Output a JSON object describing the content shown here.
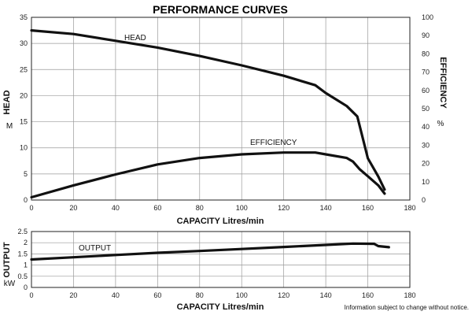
{
  "title": "PERFORMANCE CURVES",
  "footnote": "Information subject to change without notice.",
  "chart_data": [
    {
      "type": "line",
      "xlabel": "CAPACITY Litres/min",
      "xlim": [
        0,
        180
      ],
      "x_ticks": [
        "0",
        "20",
        "40",
        "60",
        "80",
        "100",
        "120",
        "140",
        "160",
        "180"
      ],
      "ylabel": "HEAD",
      "ylabel_unit": "M",
      "ylim": [
        0,
        35
      ],
      "y_ticks": [
        "0",
        "5",
        "10",
        "15",
        "20",
        "25",
        "30",
        "35"
      ],
      "y2label": "EFFICIENCY",
      "y2label_unit": "%",
      "y2lim": [
        0,
        100
      ],
      "y2_ticks": [
        "0",
        "10",
        "20",
        "30",
        "40",
        "50",
        "60",
        "70",
        "80",
        "90",
        "100"
      ],
      "grid": true,
      "series": [
        {
          "name": "HEAD",
          "axis": "left",
          "x": [
            0,
            20,
            40,
            60,
            80,
            100,
            120,
            135,
            140,
            150,
            155,
            160,
            165,
            168
          ],
          "y": [
            32.5,
            31.8,
            30.5,
            29.2,
            27.6,
            25.8,
            23.8,
            22.0,
            20.5,
            18.0,
            16.0,
            8.0,
            4.5,
            2.0
          ]
        },
        {
          "name": "EFFICIENCY",
          "axis": "right",
          "x": [
            0,
            20,
            40,
            60,
            80,
            100,
            120,
            135,
            140,
            150,
            153,
            156,
            160,
            165,
            168
          ],
          "y": [
            1.5,
            8,
            14,
            19.5,
            23,
            25,
            26,
            26,
            25,
            23,
            21,
            17,
            13,
            8,
            3.5
          ]
        }
      ]
    },
    {
      "type": "line",
      "xlabel": "CAPACITY Litres/min",
      "xlim": [
        0,
        180
      ],
      "x_ticks": [
        "0",
        "20",
        "40",
        "60",
        "80",
        "100",
        "120",
        "140",
        "160",
        "180"
      ],
      "ylabel": "OUTPUT",
      "ylabel_unit": "kW",
      "ylim": [
        0,
        2.5
      ],
      "y_ticks": [
        "0",
        "0.5",
        "1",
        "1.5",
        "2",
        "2.5"
      ],
      "grid": true,
      "series": [
        {
          "name": "OUTPUT",
          "x": [
            0,
            20,
            40,
            60,
            80,
            100,
            120,
            140,
            153,
            163,
            165,
            170
          ],
          "y": [
            1.25,
            1.35,
            1.45,
            1.55,
            1.63,
            1.72,
            1.81,
            1.9,
            1.96,
            1.95,
            1.85,
            1.8
          ]
        }
      ]
    }
  ]
}
